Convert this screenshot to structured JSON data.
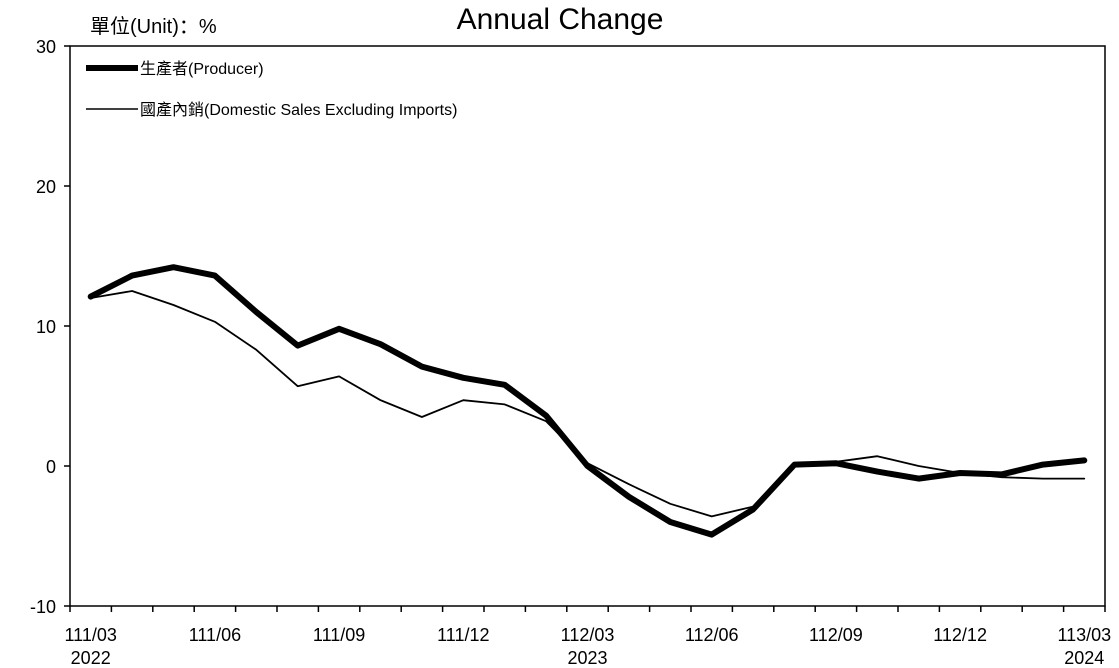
{
  "chart_data": {
    "type": "line",
    "title": "Annual Change",
    "unit_label": "單位(Unit)：%",
    "ylim": [
      -10,
      30
    ],
    "y_ticks": [
      -10,
      0,
      10,
      20,
      30
    ],
    "grid": false,
    "legend_position": "top-left",
    "x": [
      "111/03",
      "111/04",
      "111/05",
      "111/06",
      "111/07",
      "111/08",
      "111/09",
      "111/10",
      "111/11",
      "111/12",
      "112/01",
      "112/02",
      "112/03",
      "112/04",
      "112/05",
      "112/06",
      "112/07",
      "112/08",
      "112/09",
      "112/10",
      "112/11",
      "112/12",
      "113/01",
      "113/02",
      "113/03"
    ],
    "x_tick_labels": [
      {
        "label": "111/03",
        "year": "2022",
        "index": 0
      },
      {
        "label": "111/06",
        "year": "",
        "index": 3
      },
      {
        "label": "111/09",
        "year": "",
        "index": 6
      },
      {
        "label": "111/12",
        "year": "",
        "index": 9
      },
      {
        "label": "112/03",
        "year": "2023",
        "index": 12
      },
      {
        "label": "112/06",
        "year": "",
        "index": 15
      },
      {
        "label": "112/09",
        "year": "",
        "index": 18
      },
      {
        "label": "112/12",
        "year": "",
        "index": 21
      },
      {
        "label": "113/03",
        "year": "2024",
        "index": 24
      }
    ],
    "series": [
      {
        "name": "生產者(Producer)",
        "color": "#000000",
        "style": "thick",
        "values": [
          12.1,
          13.6,
          14.2,
          13.6,
          11.0,
          8.6,
          9.8,
          8.7,
          7.1,
          6.3,
          5.8,
          3.6,
          0.0,
          -2.2,
          -4.0,
          -4.9,
          -3.1,
          0.1,
          0.2,
          -0.4,
          -0.9,
          -0.5,
          -0.6,
          0.1,
          0.4
        ]
      },
      {
        "name": "國產內銷(Domestic Sales Excluding Imports)",
        "color": "#000000",
        "style": "thin",
        "values": [
          12.0,
          12.5,
          11.5,
          10.3,
          8.3,
          5.7,
          6.4,
          4.7,
          3.5,
          4.7,
          4.4,
          3.2,
          0.2,
          -1.3,
          -2.7,
          -3.6,
          -2.9,
          0.2,
          0.3,
          0.7,
          0.0,
          -0.5,
          -0.8,
          -0.9,
          -0.9
        ]
      }
    ]
  }
}
